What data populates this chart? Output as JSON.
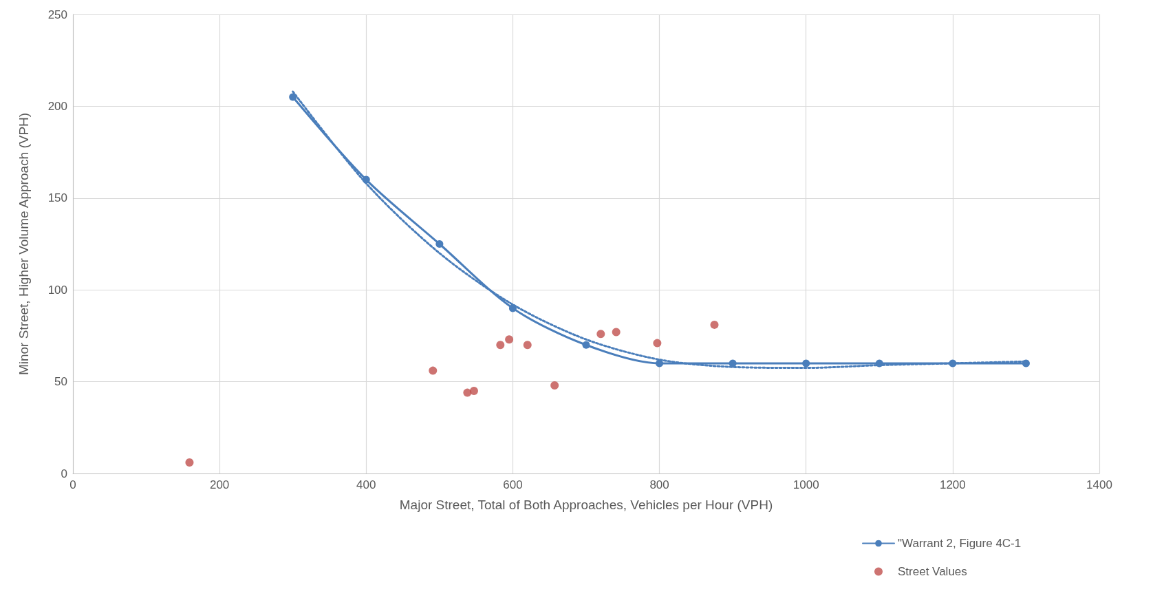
{
  "chart_data": {
    "type": "scatter",
    "xlabel": "Major Street, Total of Both Approaches, Vehicles per Hour (VPH)",
    "ylabel": "Minor Street, Higher Volume Approach (VPH)",
    "xlim": [
      0,
      1400
    ],
    "xticks": [
      0,
      200,
      400,
      600,
      800,
      1000,
      1200,
      1400
    ],
    "ylim": [
      0,
      250
    ],
    "yticks": [
      0,
      50,
      100,
      150,
      200,
      250
    ],
    "grid": true,
    "legend": "bottom right",
    "series": [
      {
        "name": "\"Warrant 2, Figure 4C-1",
        "type": "line",
        "color": "#4a7ebb",
        "marker": "circle",
        "line_style": "solid",
        "x": [
          300,
          400,
          500,
          600,
          700,
          800,
          900,
          1000,
          1100,
          1200,
          1300
        ],
        "values": [
          205,
          160,
          125,
          90,
          70,
          60,
          60,
          60,
          60,
          60,
          60
        ]
      },
      {
        "type": "line",
        "color": "#4a7ebb",
        "marker": "none",
        "line_style": "dotted",
        "x": [
          300,
          400,
          500,
          600,
          700,
          800,
          900,
          1000,
          1100,
          1200,
          1300
        ],
        "values": [
          208,
          158,
          120,
          92,
          73,
          62,
          58,
          57.5,
          59,
          60,
          61
        ]
      },
      {
        "name": "Street Values",
        "color": "#c0504d",
        "marker": "circle",
        "x": [
          159,
          491,
          538,
          547,
          583,
          595,
          620,
          657,
          720,
          741,
          797,
          875
        ],
        "values": [
          6,
          56,
          44,
          45,
          70,
          73,
          70,
          48,
          76,
          77,
          71,
          81
        ]
      }
    ]
  }
}
